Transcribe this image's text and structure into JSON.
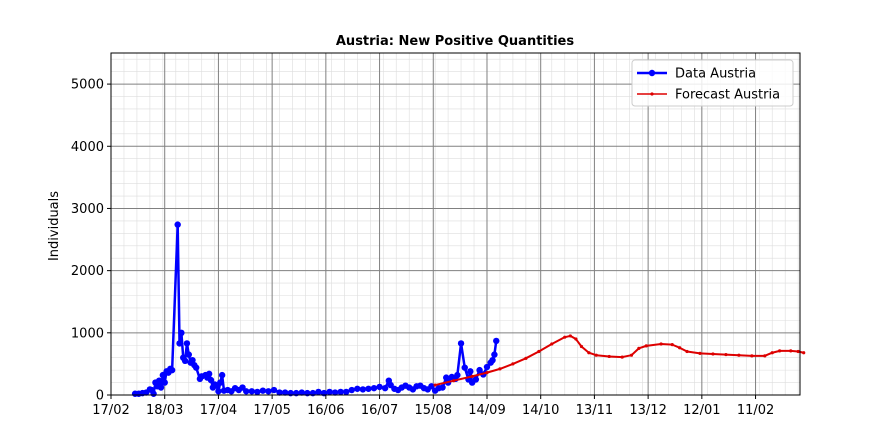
{
  "chart_data": {
    "type": "line",
    "title": "Austria: New Positive Quantities",
    "xlabel": "",
    "ylabel": "Individuals",
    "x_is_date": true,
    "x_tick_labels": [
      "17/02",
      "18/03",
      "17/04",
      "17/05",
      "16/06",
      "16/07",
      "15/08",
      "14/09",
      "14/10",
      "13/11",
      "13/12",
      "12/01",
      "11/02"
    ],
    "xlim": [
      "2020-02-17",
      "2021-02-23"
    ],
    "ylim": [
      0,
      5500
    ],
    "y_ticks": [
      0,
      1000,
      2000,
      3000,
      4000,
      5000
    ],
    "grid": true,
    "minor_grid": true,
    "legend": "top-right",
    "series": [
      {
        "name": "Data Austria",
        "color": "#0000ff",
        "marker": "circle",
        "points": [
          [
            "2020-03-01",
            20
          ],
          [
            "2020-03-03",
            20
          ],
          [
            "2020-03-05",
            30
          ],
          [
            "2020-03-07",
            40
          ],
          [
            "2020-03-09",
            90
          ],
          [
            "2020-03-10",
            80
          ],
          [
            "2020-03-11",
            20
          ],
          [
            "2020-03-12",
            200
          ],
          [
            "2020-03-13",
            140
          ],
          [
            "2020-03-14",
            230
          ],
          [
            "2020-03-15",
            120
          ],
          [
            "2020-03-16",
            320
          ],
          [
            "2020-03-17",
            200
          ],
          [
            "2020-03-18",
            380
          ],
          [
            "2020-03-19",
            360
          ],
          [
            "2020-03-20",
            420
          ],
          [
            "2020-03-21",
            400
          ],
          [
            "2020-03-24",
            2740
          ],
          [
            "2020-03-25",
            830
          ],
          [
            "2020-03-26",
            1000
          ],
          [
            "2020-03-27",
            600
          ],
          [
            "2020-03-28",
            550
          ],
          [
            "2020-03-29",
            830
          ],
          [
            "2020-03-30",
            650
          ],
          [
            "2020-03-31",
            520
          ],
          [
            "2020-04-01",
            560
          ],
          [
            "2020-04-02",
            480
          ],
          [
            "2020-04-03",
            440
          ],
          [
            "2020-04-05",
            260
          ],
          [
            "2020-04-06",
            300
          ],
          [
            "2020-04-08",
            320
          ],
          [
            "2020-04-09",
            280
          ],
          [
            "2020-04-10",
            340
          ],
          [
            "2020-04-11",
            240
          ],
          [
            "2020-04-12",
            120
          ],
          [
            "2020-04-13",
            170
          ],
          [
            "2020-04-14",
            150
          ],
          [
            "2020-04-15",
            60
          ],
          [
            "2020-04-16",
            200
          ],
          [
            "2020-04-17",
            320
          ],
          [
            "2020-04-18",
            70
          ],
          [
            "2020-04-20",
            80
          ],
          [
            "2020-04-22",
            60
          ],
          [
            "2020-04-24",
            110
          ],
          [
            "2020-04-26",
            80
          ],
          [
            "2020-04-28",
            120
          ],
          [
            "2020-04-30",
            60
          ],
          [
            "2020-05-03",
            60
          ],
          [
            "2020-05-06",
            50
          ],
          [
            "2020-05-09",
            70
          ],
          [
            "2020-05-12",
            60
          ],
          [
            "2020-05-15",
            80
          ],
          [
            "2020-05-18",
            40
          ],
          [
            "2020-05-21",
            40
          ],
          [
            "2020-05-24",
            30
          ],
          [
            "2020-05-27",
            30
          ],
          [
            "2020-05-30",
            40
          ],
          [
            "2020-06-02",
            30
          ],
          [
            "2020-06-05",
            30
          ],
          [
            "2020-06-08",
            50
          ],
          [
            "2020-06-11",
            30
          ],
          [
            "2020-06-14",
            50
          ],
          [
            "2020-06-17",
            40
          ],
          [
            "2020-06-20",
            50
          ],
          [
            "2020-06-23",
            50
          ],
          [
            "2020-06-26",
            80
          ],
          [
            "2020-06-29",
            100
          ],
          [
            "2020-07-02",
            90
          ],
          [
            "2020-07-05",
            100
          ],
          [
            "2020-07-08",
            110
          ],
          [
            "2020-07-11",
            130
          ],
          [
            "2020-07-14",
            110
          ],
          [
            "2020-07-16",
            230
          ],
          [
            "2020-07-17",
            160
          ],
          [
            "2020-07-19",
            100
          ],
          [
            "2020-07-21",
            80
          ],
          [
            "2020-07-23",
            120
          ],
          [
            "2020-07-25",
            150
          ],
          [
            "2020-07-27",
            120
          ],
          [
            "2020-07-29",
            90
          ],
          [
            "2020-07-31",
            140
          ],
          [
            "2020-08-02",
            150
          ],
          [
            "2020-08-04",
            110
          ],
          [
            "2020-08-06",
            90
          ],
          [
            "2020-08-08",
            140
          ],
          [
            "2020-08-10",
            70
          ],
          [
            "2020-08-12",
            110
          ],
          [
            "2020-08-14",
            120
          ],
          [
            "2020-08-16",
            280
          ],
          [
            "2020-08-17",
            200
          ],
          [
            "2020-08-19",
            290
          ],
          [
            "2020-08-21",
            260
          ],
          [
            "2020-08-22",
            320
          ],
          [
            "2020-08-24",
            830
          ],
          [
            "2020-08-26",
            440
          ],
          [
            "2020-08-28",
            250
          ],
          [
            "2020-08-29",
            380
          ],
          [
            "2020-08-30",
            200
          ],
          [
            "2020-09-01",
            250
          ],
          [
            "2020-09-03",
            400
          ],
          [
            "2020-09-05",
            330
          ],
          [
            "2020-09-07",
            450
          ],
          [
            "2020-09-09",
            520
          ],
          [
            "2020-09-10",
            560
          ],
          [
            "2020-09-11",
            650
          ],
          [
            "2020-09-12",
            870
          ]
        ]
      },
      {
        "name": "Forecast Austria",
        "color": "#dd0000",
        "marker": "dot",
        "points": [
          [
            "2020-08-10",
            160
          ],
          [
            "2020-08-20",
            230
          ],
          [
            "2020-08-30",
            300
          ],
          [
            "2020-09-07",
            360
          ],
          [
            "2020-09-14",
            420
          ],
          [
            "2020-09-21",
            500
          ],
          [
            "2020-09-28",
            590
          ],
          [
            "2020-10-05",
            700
          ],
          [
            "2020-10-12",
            820
          ],
          [
            "2020-10-19",
            930
          ],
          [
            "2020-10-22",
            950
          ],
          [
            "2020-10-25",
            900
          ],
          [
            "2020-10-28",
            780
          ],
          [
            "2020-11-01",
            680
          ],
          [
            "2020-11-05",
            640
          ],
          [
            "2020-11-12",
            620
          ],
          [
            "2020-11-19",
            610
          ],
          [
            "2020-11-24",
            640
          ],
          [
            "2020-11-28",
            750
          ],
          [
            "2020-12-02",
            790
          ],
          [
            "2020-12-10",
            820
          ],
          [
            "2020-12-16",
            810
          ],
          [
            "2020-12-20",
            760
          ],
          [
            "2020-12-24",
            700
          ],
          [
            "2020-12-31",
            670
          ],
          [
            "2021-01-07",
            660
          ],
          [
            "2021-01-14",
            650
          ],
          [
            "2021-01-21",
            640
          ],
          [
            "2021-01-28",
            630
          ],
          [
            "2021-02-04",
            630
          ],
          [
            "2021-02-08",
            680
          ],
          [
            "2021-02-12",
            710
          ],
          [
            "2021-02-18",
            710
          ],
          [
            "2021-02-22",
            700
          ],
          [
            "2021-02-25",
            680
          ]
        ]
      }
    ]
  }
}
